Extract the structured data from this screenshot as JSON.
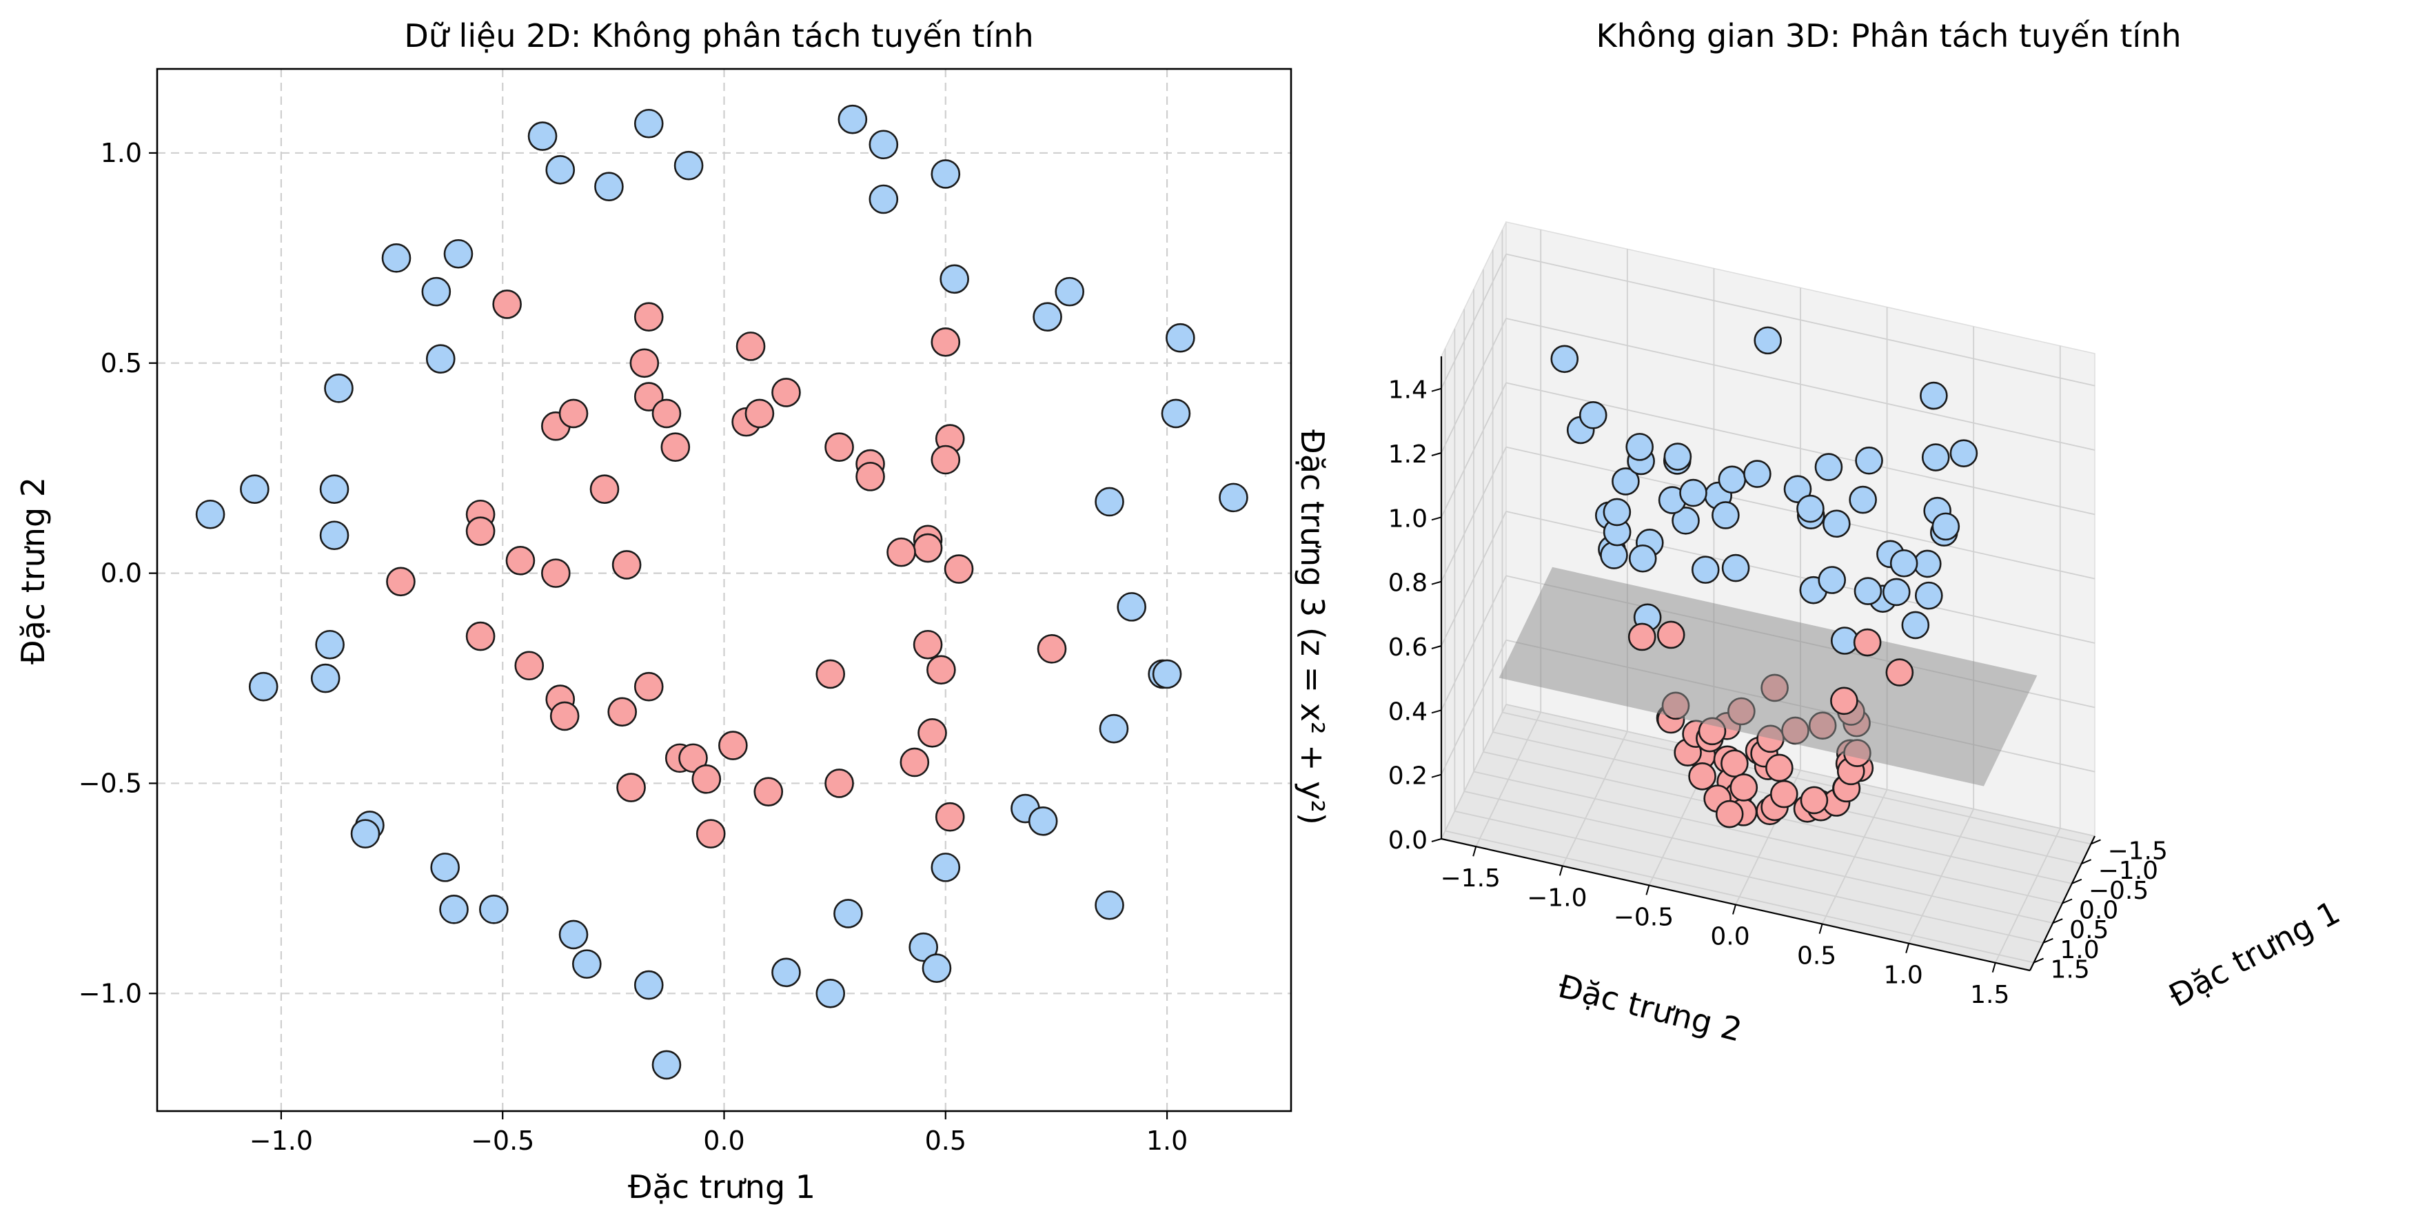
{
  "figure": {
    "colors": {
      "class_outer": "#a9d0f7",
      "class_inner": "#f8a3a3",
      "edge": "#1a1a1a",
      "grid": "#cfcfcf",
      "plane": "#8c8c8c",
      "pane_left": "#eeeeee",
      "pane_right": "#f2f2f2",
      "pane_floor": "#e6e6e6"
    }
  },
  "chart_data": [
    {
      "type": "scatter",
      "title": "Dữ liệu 2D: Không phân tách tuyến tính",
      "xlabel": "Đặc trưng 1",
      "ylabel": "Đặc trưng 2",
      "xlim": [
        -1.28,
        1.28
      ],
      "ylim": [
        -1.28,
        1.2
      ],
      "xticks": [
        -1.0,
        -0.5,
        0.0,
        0.5,
        1.0
      ],
      "yticks": [
        -1.0,
        -0.5,
        0.0,
        0.5,
        1.0
      ],
      "xtick_labels": [
        "−1.0",
        "−0.5",
        "0.0",
        "0.5",
        "1.0"
      ],
      "ytick_labels": [
        "−1.0",
        "−0.5",
        "0.0",
        "0.5",
        "1.0"
      ],
      "grid": true,
      "grid_style": "dashed",
      "series": [
        {
          "class": "outer",
          "color": "#a9d0f7",
          "points": [
            [
              -1.16,
              0.14
            ],
            [
              -1.06,
              0.2
            ],
            [
              -1.04,
              -0.27
            ],
            [
              -0.9,
              -0.25
            ],
            [
              -0.89,
              -0.17
            ],
            [
              -0.88,
              0.2
            ],
            [
              -0.88,
              0.09
            ],
            [
              -0.87,
              0.44
            ],
            [
              -0.8,
              -0.6
            ],
            [
              -0.81,
              -0.62
            ],
            [
              -0.74,
              0.75
            ],
            [
              -0.65,
              0.67
            ],
            [
              -0.64,
              0.51
            ],
            [
              -0.6,
              0.76
            ],
            [
              -0.63,
              -0.7
            ],
            [
              -0.61,
              -0.8
            ],
            [
              -0.52,
              -0.8
            ],
            [
              -0.41,
              1.04
            ],
            [
              -0.37,
              0.96
            ],
            [
              -0.34,
              -0.86
            ],
            [
              -0.31,
              -0.93
            ],
            [
              -0.26,
              0.92
            ],
            [
              -0.17,
              1.07
            ],
            [
              -0.08,
              0.97
            ],
            [
              -0.17,
              -0.98
            ],
            [
              -0.13,
              -1.17
            ],
            [
              0.29,
              1.08
            ],
            [
              0.36,
              1.02
            ],
            [
              0.36,
              0.89
            ],
            [
              0.5,
              0.95
            ],
            [
              0.52,
              0.7
            ],
            [
              0.73,
              0.61
            ],
            [
              0.78,
              0.67
            ],
            [
              1.03,
              0.56
            ],
            [
              1.02,
              0.38
            ],
            [
              1.15,
              0.18
            ],
            [
              0.87,
              0.17
            ],
            [
              0.92,
              -0.08
            ],
            [
              0.99,
              -0.24
            ],
            [
              1.0,
              -0.24
            ],
            [
              0.88,
              -0.37
            ],
            [
              0.68,
              -0.56
            ],
            [
              0.72,
              -0.59
            ],
            [
              0.87,
              -0.79
            ],
            [
              0.5,
              -0.7
            ],
            [
              0.45,
              -0.89
            ],
            [
              0.48,
              -0.94
            ],
            [
              0.28,
              -0.81
            ],
            [
              0.14,
              -0.95
            ],
            [
              0.24,
              -1.0
            ]
          ]
        },
        {
          "class": "inner",
          "color": "#f8a3a3",
          "points": [
            [
              -0.49,
              0.64
            ],
            [
              -0.17,
              0.61
            ],
            [
              -0.18,
              0.5
            ],
            [
              -0.17,
              0.42
            ],
            [
              -0.13,
              0.38
            ],
            [
              -0.38,
              0.35
            ],
            [
              -0.34,
              0.38
            ],
            [
              -0.11,
              0.3
            ],
            [
              -0.27,
              0.2
            ],
            [
              -0.55,
              0.14
            ],
            [
              -0.55,
              0.1
            ],
            [
              -0.46,
              0.03
            ],
            [
              -0.38,
              0.0
            ],
            [
              -0.22,
              0.02
            ],
            [
              -0.73,
              -0.02
            ],
            [
              -0.55,
              -0.15
            ],
            [
              -0.44,
              -0.22
            ],
            [
              -0.37,
              -0.3
            ],
            [
              -0.36,
              -0.34
            ],
            [
              -0.23,
              -0.33
            ],
            [
              -0.17,
              -0.27
            ],
            [
              -0.1,
              -0.44
            ],
            [
              -0.07,
              -0.44
            ],
            [
              -0.04,
              -0.49
            ],
            [
              -0.21,
              -0.51
            ],
            [
              -0.03,
              -0.62
            ],
            [
              0.02,
              -0.41
            ],
            [
              0.1,
              -0.52
            ],
            [
              0.06,
              0.54
            ],
            [
              0.05,
              0.36
            ],
            [
              0.08,
              0.38
            ],
            [
              0.14,
              0.43
            ],
            [
              0.26,
              0.3
            ],
            [
              0.33,
              0.26
            ],
            [
              0.33,
              0.23
            ],
            [
              0.5,
              0.55
            ],
            [
              0.51,
              0.32
            ],
            [
              0.5,
              0.27
            ],
            [
              0.46,
              0.08
            ],
            [
              0.46,
              0.06
            ],
            [
              0.4,
              0.05
            ],
            [
              0.53,
              0.01
            ],
            [
              0.46,
              -0.17
            ],
            [
              0.49,
              -0.23
            ],
            [
              0.24,
              -0.24
            ],
            [
              0.74,
              -0.18
            ],
            [
              0.47,
              -0.38
            ],
            [
              0.43,
              -0.45
            ],
            [
              0.26,
              -0.5
            ],
            [
              0.51,
              -0.58
            ]
          ]
        }
      ]
    },
    {
      "type": "scatter",
      "title": "Không gian 3D: Phân tách tuyến tính",
      "xlabel": "Đặc trưng 1",
      "ylabel": "Đặc trưng 2",
      "zlabel": "Đặc trưng 3 (z = x² + y²)",
      "xlim": [
        -1.7,
        1.7
      ],
      "ylim": [
        -1.7,
        1.7
      ],
      "zlim": [
        0.0,
        1.5
      ],
      "xticks": [
        -1.5,
        -1.0,
        -0.5,
        0.0,
        0.5,
        1.0,
        1.5
      ],
      "yticks": [
        -1.5,
        -1.0,
        -0.5,
        0.0,
        0.5,
        1.0,
        1.5
      ],
      "zticks": [
        0.0,
        0.2,
        0.4,
        0.6,
        0.8,
        1.0,
        1.2,
        1.4
      ],
      "xtick_labels": [
        "−1.5",
        "−1.0",
        "−0.5",
        "0.0",
        "0.5",
        "1.0",
        "1.5"
      ],
      "ytick_labels": [
        "−1.5",
        "−1.0",
        "−0.5",
        "0.0",
        "0.5",
        "1.0",
        "1.5"
      ],
      "ztick_labels": [
        "0.0",
        "0.2",
        "0.4",
        "0.6",
        "0.8",
        "1.0",
        "1.2",
        "1.4"
      ],
      "grid": true,
      "plane_z": 0.5,
      "note": "z of each point = x² + y² of the corresponding 2D point"
    }
  ]
}
